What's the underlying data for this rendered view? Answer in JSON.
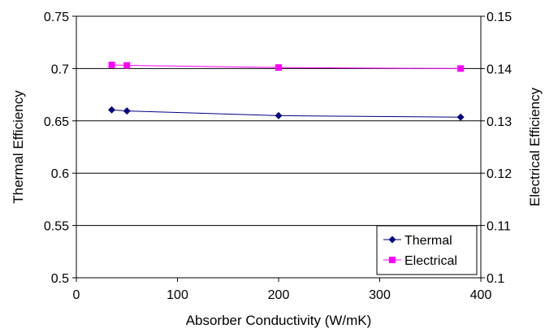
{
  "chart_data": {
    "type": "line",
    "xlabel": "Absorber Conductivity (W/mK)",
    "ylabel_left": "Thermal Efficiency",
    "ylabel_right": "Electrical Efficiency",
    "xlim": [
      0,
      400
    ],
    "ylim_left": [
      0.5,
      0.75
    ],
    "ylim_right": [
      0.1,
      0.15
    ],
    "x_ticks": [
      "0",
      "100",
      "200",
      "300",
      "400"
    ],
    "y_left_ticks": [
      "0.5",
      "0.55",
      "0.6",
      "0.65",
      "0.7",
      "0.75"
    ],
    "y_right_ticks": [
      "0.1",
      "0.11",
      "0.12",
      "0.13",
      "0.14",
      "0.15"
    ],
    "grid": "horizontal",
    "legend_position": "bottom-right",
    "series": [
      {
        "name": "Thermal",
        "axis": "left",
        "color": "#000080",
        "marker": "diamond",
        "x": [
          35,
          50,
          200,
          380
        ],
        "y": [
          0.6605,
          0.6595,
          0.655,
          0.6535
        ]
      },
      {
        "name": "Electrical",
        "axis": "right",
        "color": "#FF00FF",
        "marker": "square",
        "x": [
          35,
          50,
          200,
          380
        ],
        "y": [
          0.1407,
          0.1406,
          0.1402,
          0.14
        ]
      }
    ]
  }
}
